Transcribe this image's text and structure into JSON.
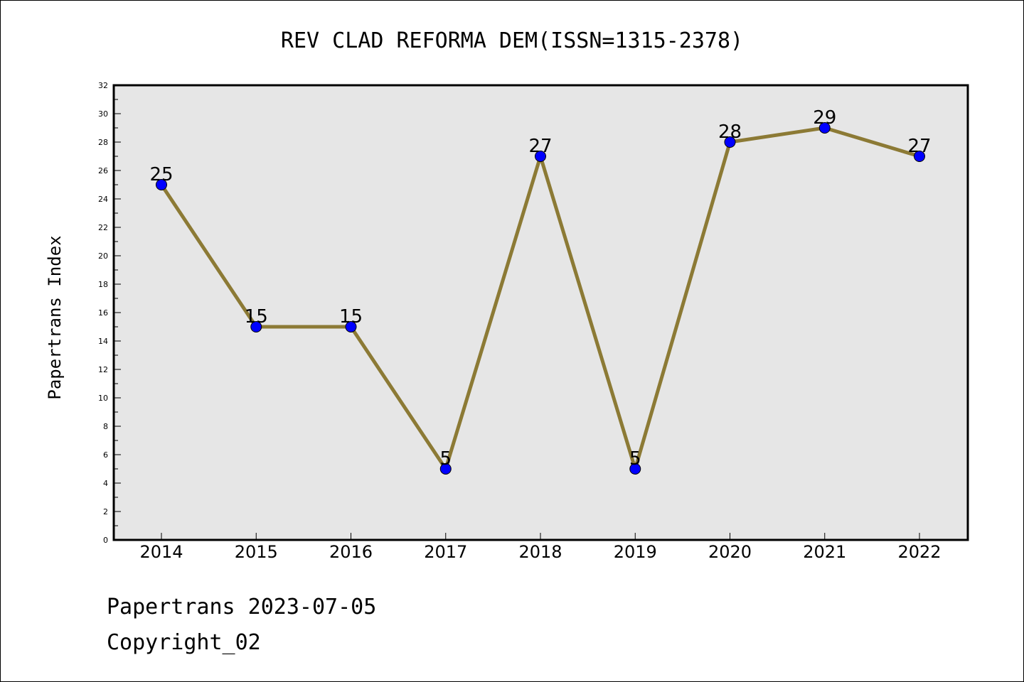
{
  "chart_data": {
    "type": "line",
    "title": "REV CLAD REFORMA DEM(ISSN=1315-2378)",
    "xlabel": "",
    "ylabel": "Papertrans Index",
    "categories": [
      "2014",
      "2015",
      "2016",
      "2017",
      "2018",
      "2019",
      "2020",
      "2021",
      "2022"
    ],
    "series": [
      {
        "values": [
          25,
          15,
          15,
          5,
          27,
          5,
          28,
          29,
          27
        ]
      }
    ],
    "ylim": [
      0,
      32
    ],
    "ytick_step": 2,
    "yticks": [
      "0",
      "2",
      "4",
      "6",
      "8",
      "10",
      "12",
      "14",
      "16",
      "18",
      "20",
      "22",
      "24",
      "26",
      "28",
      "30",
      "32"
    ],
    "data_labels": [
      "25",
      "15",
      "15",
      "5",
      "27",
      "5",
      "28",
      "29",
      "27"
    ],
    "grid": false,
    "colors": {
      "line": "#8c7a35",
      "marker": "#0000ff",
      "plot_background": "#e6e6e6"
    }
  },
  "footer": {
    "line1": "Papertrans 2023-07-05",
    "line2": "Copyright_02"
  }
}
